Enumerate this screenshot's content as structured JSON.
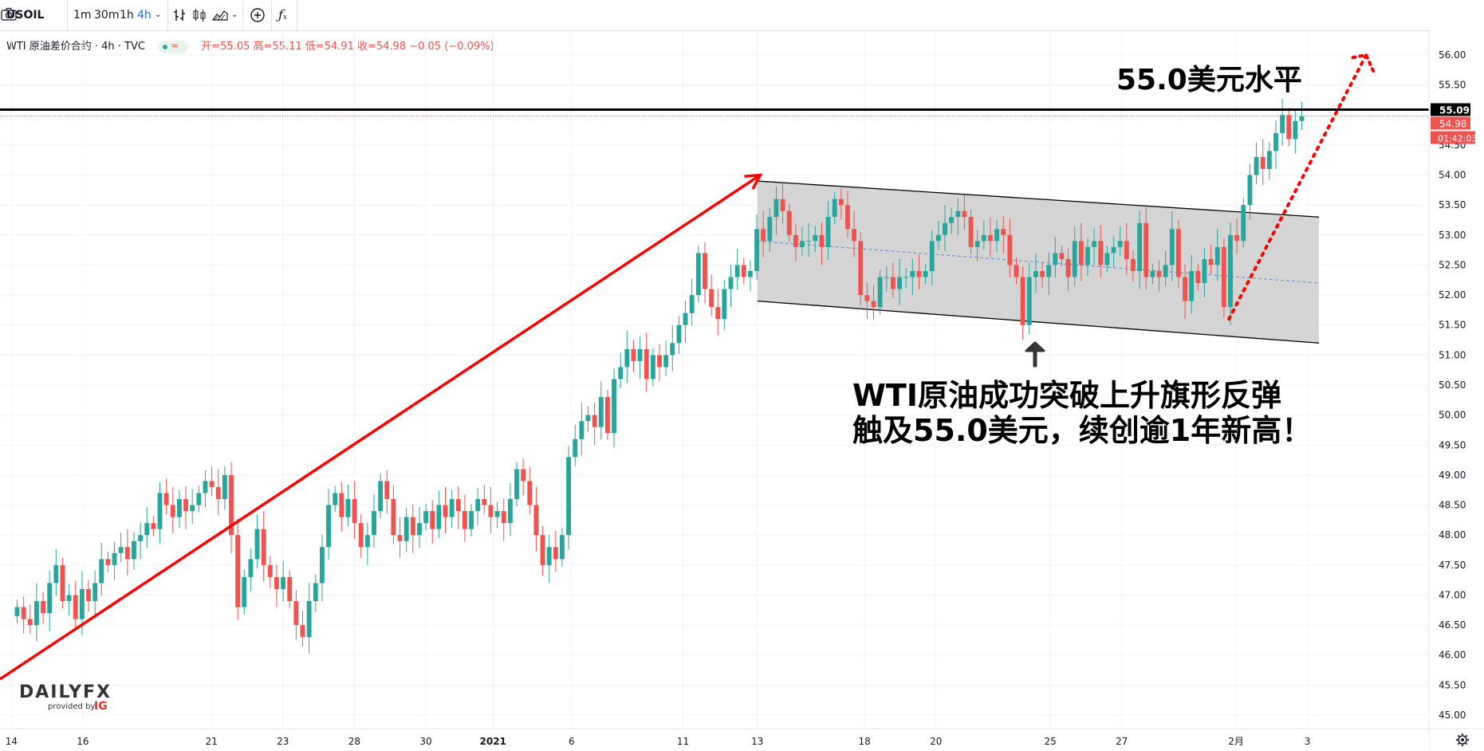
{
  "toolbar": {
    "symbol": "USOIL",
    "intervals": [
      "1m",
      "30m",
      "1h",
      "4h"
    ],
    "active_interval": "4h"
  },
  "legend": {
    "title": "WTI 原油差价合约 · 4h · TVC",
    "ohlc": "开=55.05 高=55.11 低=54.91 收=54.98 −0.05 (−0.09%)"
  },
  "annotations": {
    "level_label": "55.0美元水平",
    "message_line1": "WTI原油成功突破上升旗形反弹",
    "message_line2": "触及55.0美元，续创逾1年新高！"
  },
  "watermark": {
    "brand": "DAILYFX",
    "provided_by": "provided by",
    "ig": "IG"
  },
  "colors": {
    "up": "#26a69a",
    "down": "#ef5350",
    "arrow": "#ff0000",
    "flag_fill": "#d0d0d0",
    "line": "#000000"
  },
  "chart_data": {
    "type": "candlestick",
    "symbol": "USOIL",
    "interval": "4h",
    "y_axis": {
      "min": 45.0,
      "max": 56.0,
      "ticks": [
        "45.00",
        "45.50",
        "46.00",
        "46.50",
        "47.00",
        "47.50",
        "48.00",
        "48.50",
        "49.00",
        "49.50",
        "50.00",
        "50.50",
        "51.00",
        "51.50",
        "52.00",
        "52.50",
        "53.00",
        "53.50",
        "54.00",
        "54.50",
        "55.00",
        "55.50",
        "56.00"
      ]
    },
    "x_axis": {
      "ticks": [
        {
          "label": "14",
          "x": 0.8
        },
        {
          "label": "16",
          "x": 5.8
        },
        {
          "label": "21",
          "x": 14.8
        },
        {
          "label": "23",
          "x": 19.8
        },
        {
          "label": "28",
          "x": 24.8
        },
        {
          "label": "30",
          "x": 29.8
        },
        {
          "label": "2021",
          "x": 34.5
        },
        {
          "label": "6",
          "x": 40
        },
        {
          "label": "11",
          "x": 47.8
        },
        {
          "label": "13",
          "x": 53
        },
        {
          "label": "18",
          "x": 60.5
        },
        {
          "label": "20",
          "x": 65.5
        },
        {
          "label": "25",
          "x": 73.5
        },
        {
          "label": "27",
          "x": 78.5
        },
        {
          "label": "2月",
          "x": 86.5
        },
        {
          "label": "3",
          "x": 91.5
        }
      ]
    },
    "price_labels": {
      "level": "55.09",
      "last": "54.98",
      "countdown": "01:42:03"
    },
    "level_line": 55.09,
    "closes": [
      46.8,
      46.6,
      46.5,
      46.9,
      46.7,
      47.2,
      47.5,
      46.9,
      47.0,
      46.6,
      47.1,
      46.9,
      47.2,
      47.6,
      47.5,
      47.7,
      47.8,
      47.6,
      47.9,
      48.0,
      48.2,
      48.1,
      48.7,
      48.5,
      48.3,
      48.6,
      48.4,
      48.5,
      48.7,
      48.9,
      48.8,
      48.6,
      49.0,
      48.0,
      46.8,
      47.3,
      47.6,
      48.1,
      47.5,
      47.3,
      47.1,
      47.3,
      46.9,
      46.5,
      46.3,
      46.9,
      47.2,
      47.8,
      48.5,
      48.7,
      48.3,
      48.6,
      48.2,
      47.8,
      48.0,
      48.4,
      48.9,
      48.6,
      48.0,
      47.9,
      48.3,
      48.0,
      48.2,
      48.4,
      48.1,
      48.5,
      48.3,
      48.6,
      48.4,
      48.1,
      48.4,
      48.6,
      48.5,
      48.3,
      48.4,
      48.2,
      48.6,
      49.1,
      48.9,
      48.5,
      48.0,
      47.5,
      47.8,
      47.6,
      48.0,
      49.3,
      49.6,
      49.9,
      50.0,
      49.8,
      50.3,
      49.7,
      50.6,
      50.8,
      51.1,
      50.9,
      51.1,
      50.6,
      51.0,
      50.8,
      51.0,
      51.2,
      51.5,
      51.7,
      52.0,
      52.7,
      52.1,
      51.8,
      51.6,
      52.1,
      52.3,
      52.5,
      52.3,
      52.4,
      53.1,
      52.9,
      53.3,
      53.6,
      53.4,
      53.0,
      52.8,
      52.9,
      52.9,
      53.0,
      52.8,
      53.3,
      53.6,
      53.5,
      53.1,
      52.9,
      52.0,
      51.9,
      51.8,
      52.3,
      52.3,
      52.1,
      52.3,
      52.3,
      52.4,
      52.3,
      52.4,
      52.9,
      53.0,
      53.2,
      53.3,
      53.4,
      53.3,
      52.8,
      52.9,
      53.0,
      52.9,
      53.1,
      53.0,
      52.5,
      52.3,
      51.5,
      52.3,
      52.4,
      52.3,
      52.5,
      52.7,
      52.6,
      52.3,
      52.9,
      52.5,
      52.8,
      52.9,
      52.5,
      52.7,
      52.8,
      52.9,
      52.6,
      52.4,
      53.2,
      52.3,
      52.4,
      52.3,
      52.5,
      53.1,
      52.3,
      51.9,
      52.4,
      52.2,
      52.6,
      52.5,
      52.8,
      51.8,
      53.0,
      52.9,
      53.5,
      54.0,
      54.3,
      54.1,
      54.4,
      54.7,
      55.0,
      54.6,
      54.9,
      54.98
    ],
    "flag": {
      "upper": [
        [
          53.0,
          53.9
        ],
        [
          92.3,
          53.3
        ]
      ],
      "lower": [
        [
          53.0,
          51.9
        ],
        [
          92.3,
          51.2
        ]
      ],
      "mid": [
        [
          53.0,
          52.9
        ],
        [
          92.3,
          52.2
        ]
      ]
    },
    "trend_arrow": {
      "from": [
        0,
        45.6
      ],
      "to": [
        53.2,
        54.0
      ]
    },
    "projection": {
      "from": [
        86.0,
        51.6
      ],
      "to": [
        95.6,
        56.0
      ]
    }
  }
}
